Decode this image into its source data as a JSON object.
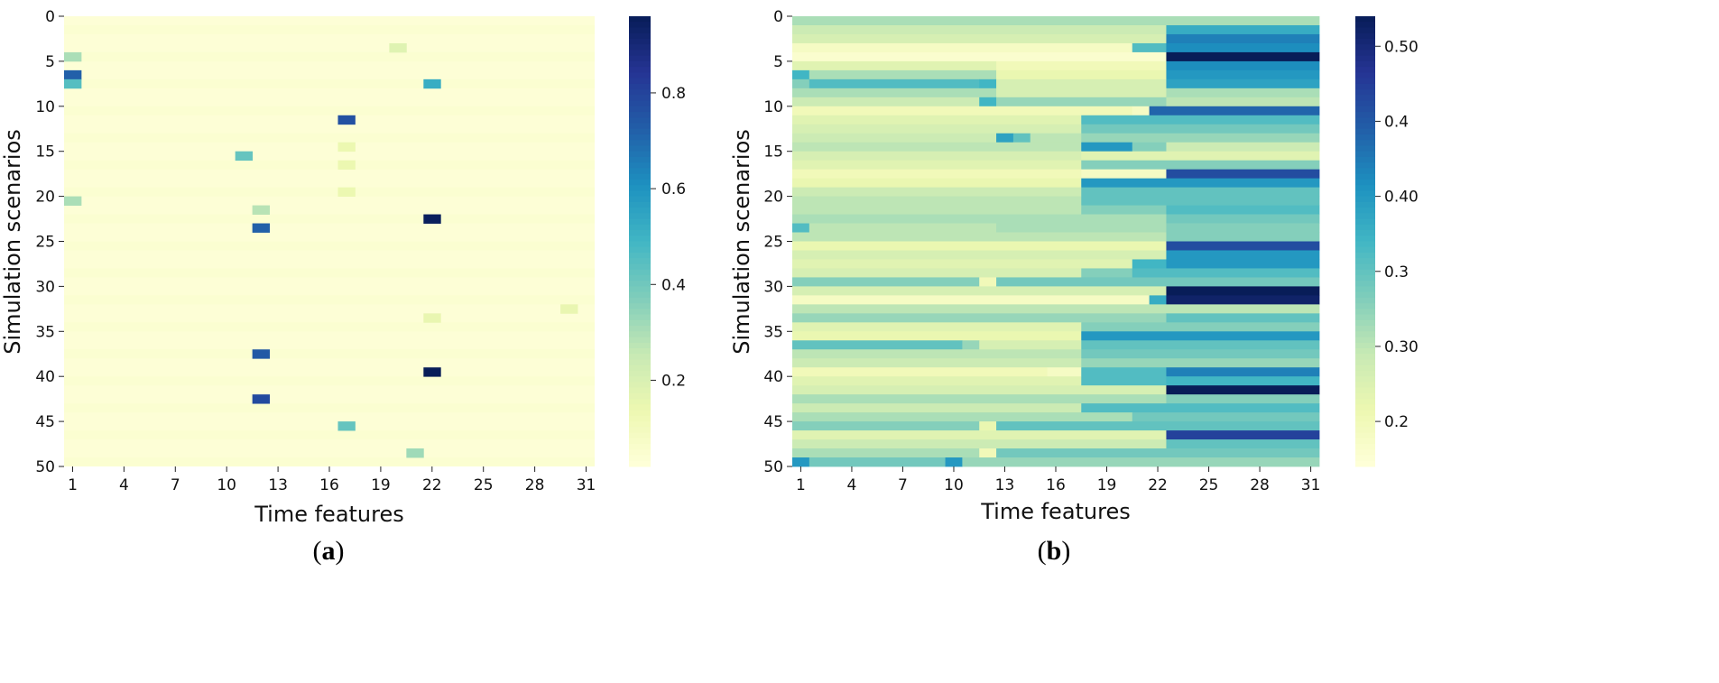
{
  "chart_data": [
    {
      "type": "heatmap",
      "panel_label": "a",
      "xlabel": "Time features",
      "ylabel": "Simulation scenarios",
      "x_tick_labels": [
        "1",
        "4",
        "7",
        "10",
        "13",
        "16",
        "19",
        "22",
        "25",
        "28",
        "31"
      ],
      "y_tick_labels": [
        "0",
        "5",
        "10",
        "15",
        "20",
        "25",
        "30",
        "35",
        "40",
        "45",
        "50"
      ],
      "colorbar_ticks": [
        "0.2",
        "0.4",
        "0.6",
        "0.8"
      ],
      "colorbar_tick_values": [
        0.2,
        0.4,
        0.6,
        0.8
      ],
      "colorscale": "YlGnBu",
      "vmin": 0.02,
      "vmax": 0.96,
      "n_rows": 50,
      "n_cols": 31,
      "background_value": 0.03,
      "cells": [
        {
          "row": 4,
          "col": 1,
          "value": 0.3
        },
        {
          "row": 6,
          "col": 1,
          "value": 0.72
        },
        {
          "row": 7,
          "col": 1,
          "value": 0.45
        },
        {
          "row": 7,
          "col": 22,
          "value": 0.52
        },
        {
          "row": 11,
          "col": 17,
          "value": 0.76
        },
        {
          "row": 15,
          "col": 11,
          "value": 0.42
        },
        {
          "row": 20,
          "col": 1,
          "value": 0.3
        },
        {
          "row": 21,
          "col": 12,
          "value": 0.28
        },
        {
          "row": 22,
          "col": 22,
          "value": 0.95
        },
        {
          "row": 23,
          "col": 12,
          "value": 0.72
        },
        {
          "row": 37,
          "col": 12,
          "value": 0.74
        },
        {
          "row": 39,
          "col": 22,
          "value": 0.96
        },
        {
          "row": 42,
          "col": 12,
          "value": 0.78
        },
        {
          "row": 45,
          "col": 17,
          "value": 0.42
        },
        {
          "row": 48,
          "col": 21,
          "value": 0.32
        },
        {
          "row": 3,
          "col": 20,
          "value": 0.18
        },
        {
          "row": 33,
          "col": 22,
          "value": 0.15
        },
        {
          "row": 32,
          "col": 30,
          "value": 0.15
        },
        {
          "row": 14,
          "col": 17,
          "value": 0.14
        },
        {
          "row": 16,
          "col": 17,
          "value": 0.14
        },
        {
          "row": 19,
          "col": 17,
          "value": 0.14
        }
      ]
    },
    {
      "type": "heatmap",
      "panel_label": "b",
      "xlabel": "Time features",
      "ylabel": "Simulation scenarios",
      "x_tick_labels": [
        "1",
        "4",
        "7",
        "10",
        "13",
        "16",
        "19",
        "22",
        "25",
        "28",
        "31"
      ],
      "y_tick_labels": [
        "0",
        "5",
        "10",
        "15",
        "20",
        "25",
        "30",
        "35",
        "40",
        "45",
        "50"
      ],
      "colorbar_ticks": [
        "0.2",
        "0.30",
        "0.3",
        "0.40",
        "0.4",
        "0.50"
      ],
      "colorbar_tick_values": [
        0.25,
        0.3,
        0.35,
        0.4,
        0.45,
        0.5
      ],
      "colorscale": "YlGnBu",
      "vmin": 0.22,
      "vmax": 0.52,
      "n_rows": 50,
      "n_cols": 31,
      "row_segments": [
        {
          "row": 0,
          "segs": [
            [
              1,
              31,
              0.31
            ]
          ]
        },
        {
          "row": 1,
          "segs": [
            [
              1,
              22,
              0.29
            ],
            [
              23,
              31,
              0.38
            ]
          ]
        },
        {
          "row": 2,
          "segs": [
            [
              1,
              22,
              0.28
            ],
            [
              23,
              31,
              0.42
            ]
          ]
        },
        {
          "row": 3,
          "segs": [
            [
              1,
              20,
              0.24
            ],
            [
              21,
              22,
              0.36
            ],
            [
              23,
              31,
              0.41
            ]
          ]
        },
        {
          "row": 4,
          "segs": [
            [
              1,
              22,
              0.23
            ],
            [
              23,
              31,
              0.52
            ]
          ]
        },
        {
          "row": 5,
          "segs": [
            [
              1,
              12,
              0.27
            ],
            [
              13,
              22,
              0.25
            ],
            [
              23,
              31,
              0.41
            ]
          ]
        },
        {
          "row": 6,
          "segs": [
            [
              1,
              1,
              0.37
            ],
            [
              2,
              12,
              0.31
            ],
            [
              13,
              22,
              0.26
            ],
            [
              23,
              31,
              0.4
            ]
          ]
        },
        {
          "row": 7,
          "segs": [
            [
              1,
              1,
              0.33
            ],
            [
              2,
              11,
              0.36
            ],
            [
              12,
              12,
              0.37
            ],
            [
              13,
              22,
              0.28
            ],
            [
              23,
              31,
              0.39
            ]
          ]
        },
        {
          "row": 8,
          "segs": [
            [
              1,
              12,
              0.31
            ],
            [
              13,
              22,
              0.28
            ],
            [
              23,
              31,
              0.31
            ]
          ]
        },
        {
          "row": 9,
          "segs": [
            [
              1,
              11,
              0.29
            ],
            [
              12,
              12,
              0.37
            ],
            [
              13,
              22,
              0.32
            ],
            [
              23,
              31,
              0.3
            ]
          ]
        },
        {
          "row": 10,
          "segs": [
            [
              1,
              20,
              0.25
            ],
            [
              21,
              21,
              0.24
            ],
            [
              22,
              31,
              0.44
            ]
          ]
        },
        {
          "row": 11,
          "segs": [
            [
              1,
              17,
              0.27
            ],
            [
              18,
              31,
              0.36
            ]
          ]
        },
        {
          "row": 12,
          "segs": [
            [
              1,
              17,
              0.28
            ],
            [
              18,
              31,
              0.34
            ]
          ]
        },
        {
          "row": 13,
          "segs": [
            [
              1,
              12,
              0.29
            ],
            [
              13,
              13,
              0.39
            ],
            [
              14,
              14,
              0.35
            ],
            [
              15,
              17,
              0.3
            ],
            [
              18,
              31,
              0.32
            ]
          ]
        },
        {
          "row": 14,
          "segs": [
            [
              1,
              17,
              0.3
            ],
            [
              18,
              20,
              0.4
            ],
            [
              21,
              22,
              0.33
            ],
            [
              23,
              31,
              0.29
            ]
          ]
        },
        {
          "row": 15,
          "segs": [
            [
              1,
              17,
              0.28
            ],
            [
              18,
              31,
              0.27
            ]
          ]
        },
        {
          "row": 16,
          "segs": [
            [
              1,
              17,
              0.27
            ],
            [
              18,
              31,
              0.33
            ]
          ]
        },
        {
          "row": 17,
          "segs": [
            [
              1,
              17,
              0.25
            ],
            [
              18,
              22,
              0.24
            ],
            [
              23,
              31,
              0.46
            ]
          ]
        },
        {
          "row": 18,
          "segs": [
            [
              1,
              17,
              0.26
            ],
            [
              18,
              31,
              0.4
            ]
          ]
        },
        {
          "row": 19,
          "segs": [
            [
              1,
              17,
              0.29
            ],
            [
              18,
              31,
              0.35
            ]
          ]
        },
        {
          "row": 20,
          "segs": [
            [
              1,
              17,
              0.3
            ],
            [
              18,
              31,
              0.35
            ]
          ]
        },
        {
          "row": 21,
          "segs": [
            [
              1,
              17,
              0.3
            ],
            [
              18,
              22,
              0.33
            ],
            [
              23,
              31,
              0.36
            ]
          ]
        },
        {
          "row": 22,
          "segs": [
            [
              1,
              22,
              0.31
            ],
            [
              23,
              31,
              0.34
            ]
          ]
        },
        {
          "row": 23,
          "segs": [
            [
              1,
              1,
              0.36
            ],
            [
              2,
              12,
              0.3
            ],
            [
              13,
              22,
              0.31
            ],
            [
              23,
              31,
              0.33
            ]
          ]
        },
        {
          "row": 24,
          "segs": [
            [
              1,
              22,
              0.3
            ],
            [
              23,
              31,
              0.33
            ]
          ]
        },
        {
          "row": 25,
          "segs": [
            [
              1,
              22,
              0.26
            ],
            [
              23,
              31,
              0.46
            ]
          ]
        },
        {
          "row": 26,
          "segs": [
            [
              1,
              22,
              0.28
            ],
            [
              23,
              31,
              0.4
            ]
          ]
        },
        {
          "row": 27,
          "segs": [
            [
              1,
              20,
              0.27
            ],
            [
              21,
              22,
              0.37
            ],
            [
              23,
              31,
              0.4
            ]
          ]
        },
        {
          "row": 28,
          "segs": [
            [
              1,
              17,
              0.28
            ],
            [
              18,
              20,
              0.33
            ],
            [
              21,
              31,
              0.36
            ]
          ]
        },
        {
          "row": 29,
          "segs": [
            [
              1,
              11,
              0.33
            ],
            [
              12,
              12,
              0.25
            ],
            [
              13,
              31,
              0.34
            ]
          ]
        },
        {
          "row": 30,
          "segs": [
            [
              1,
              22,
              0.28
            ],
            [
              23,
              31,
              0.52
            ]
          ]
        },
        {
          "row": 31,
          "segs": [
            [
              1,
              21,
              0.24
            ],
            [
              22,
              22,
              0.38
            ],
            [
              23,
              31,
              0.51
            ]
          ]
        },
        {
          "row": 32,
          "segs": [
            [
              1,
              31,
              0.3
            ]
          ]
        },
        {
          "row": 33,
          "segs": [
            [
              1,
              22,
              0.32
            ],
            [
              23,
              31,
              0.35
            ]
          ]
        },
        {
          "row": 34,
          "segs": [
            [
              1,
              17,
              0.27
            ],
            [
              18,
              31,
              0.33
            ]
          ]
        },
        {
          "row": 35,
          "segs": [
            [
              1,
              17,
              0.26
            ],
            [
              18,
              31,
              0.4
            ]
          ]
        },
        {
          "row": 36,
          "segs": [
            [
              1,
              10,
              0.35
            ],
            [
              11,
              11,
              0.32
            ],
            [
              12,
              17,
              0.28
            ],
            [
              18,
              31,
              0.35
            ]
          ]
        },
        {
          "row": 37,
          "segs": [
            [
              1,
              17,
              0.3
            ],
            [
              18,
              31,
              0.34
            ]
          ]
        },
        {
          "row": 38,
          "segs": [
            [
              1,
              17,
              0.29
            ],
            [
              18,
              31,
              0.32
            ]
          ]
        },
        {
          "row": 39,
          "segs": [
            [
              1,
              15,
              0.25
            ],
            [
              16,
              17,
              0.24
            ],
            [
              18,
              22,
              0.36
            ],
            [
              23,
              31,
              0.42
            ]
          ]
        },
        {
          "row": 40,
          "segs": [
            [
              1,
              17,
              0.27
            ],
            [
              18,
              22,
              0.36
            ],
            [
              23,
              31,
              0.37
            ]
          ]
        },
        {
          "row": 41,
          "segs": [
            [
              1,
              22,
              0.28
            ],
            [
              23,
              31,
              0.52
            ]
          ]
        },
        {
          "row": 42,
          "segs": [
            [
              1,
              22,
              0.31
            ],
            [
              23,
              31,
              0.33
            ]
          ]
        },
        {
          "row": 43,
          "segs": [
            [
              1,
              17,
              0.29
            ],
            [
              18,
              31,
              0.36
            ]
          ]
        },
        {
          "row": 44,
          "segs": [
            [
              1,
              20,
              0.31
            ],
            [
              21,
              31,
              0.34
            ]
          ]
        },
        {
          "row": 45,
          "segs": [
            [
              1,
              11,
              0.33
            ],
            [
              12,
              12,
              0.26
            ],
            [
              13,
              31,
              0.35
            ]
          ]
        },
        {
          "row": 46,
          "segs": [
            [
              1,
              22,
              0.27
            ],
            [
              23,
              31,
              0.47
            ]
          ]
        },
        {
          "row": 47,
          "segs": [
            [
              1,
              22,
              0.29
            ],
            [
              23,
              31,
              0.35
            ]
          ]
        },
        {
          "row": 48,
          "segs": [
            [
              1,
              11,
              0.31
            ],
            [
              12,
              12,
              0.25
            ],
            [
              13,
              31,
              0.34
            ]
          ]
        },
        {
          "row": 49,
          "segs": [
            [
              1,
              1,
              0.4
            ],
            [
              2,
              9,
              0.34
            ],
            [
              10,
              10,
              0.4
            ],
            [
              11,
              31,
              0.32
            ]
          ]
        }
      ]
    }
  ]
}
